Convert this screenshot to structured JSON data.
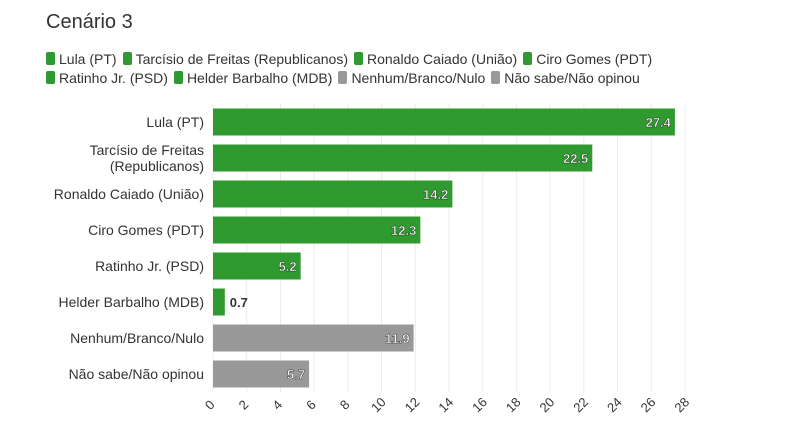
{
  "title": "Cenário 3",
  "colors": {
    "green": "#2f9a2f",
    "gray": "#999999"
  },
  "chart_data": {
    "type": "bar",
    "orientation": "horizontal",
    "categories": [
      "Lula (PT)",
      "Tarcísio de Freitas (Republicanos)",
      "Ronaldo Caiado (União)",
      "Ciro Gomes (PDT)",
      "Ratinho Jr. (PSD)",
      "Helder Barbalho (MDB)",
      "Nenhum/Branco/Nulo",
      "Não sabe/Não opinou"
    ],
    "category_label_lines": [
      [
        "Lula (PT)"
      ],
      [
        "Tarcísio de Freitas",
        "(Republicanos)"
      ],
      [
        "Ronaldo Caiado (União)"
      ],
      [
        "Ciro Gomes (PDT)"
      ],
      [
        "Ratinho Jr. (PSD)"
      ],
      [
        "Helder Barbalho (MDB)"
      ],
      [
        "Nenhum/Branco/Nulo"
      ],
      [
        "Não sabe/Não opinou"
      ]
    ],
    "values": [
      27.4,
      22.5,
      14.2,
      12.3,
      5.2,
      0.7,
      11.9,
      5.7
    ],
    "value_labels": [
      "27.4",
      "22.5",
      "14.2",
      "12.3",
      "5.2",
      "0.7",
      "11.9",
      "5.7"
    ],
    "bar_colors": [
      "green",
      "green",
      "green",
      "green",
      "green",
      "green",
      "gray",
      "gray"
    ],
    "xlim": [
      0,
      28
    ],
    "xticks": [
      0,
      2,
      4,
      6,
      8,
      10,
      12,
      14,
      16,
      18,
      20,
      22,
      24,
      26,
      28
    ],
    "grid": true,
    "legend": {
      "placement": "top",
      "rows": [
        [
          {
            "label": "Lula (PT)",
            "color": "green"
          },
          {
            "label": "Tarcísio de Freitas (Republicanos)",
            "color": "green"
          },
          {
            "label": "Ronaldo Caiado (União)",
            "color": "green"
          },
          {
            "label": "Ciro Gomes (PDT)",
            "color": "green"
          }
        ],
        [
          {
            "label": "Ratinho Jr. (PSD)",
            "color": "green"
          },
          {
            "label": "Helder Barbalho (MDB)",
            "color": "green"
          },
          {
            "label": "Nenhum/Branco/Nulo",
            "color": "gray"
          },
          {
            "label": "Não sabe/Não opinou",
            "color": "gray"
          }
        ]
      ]
    }
  }
}
